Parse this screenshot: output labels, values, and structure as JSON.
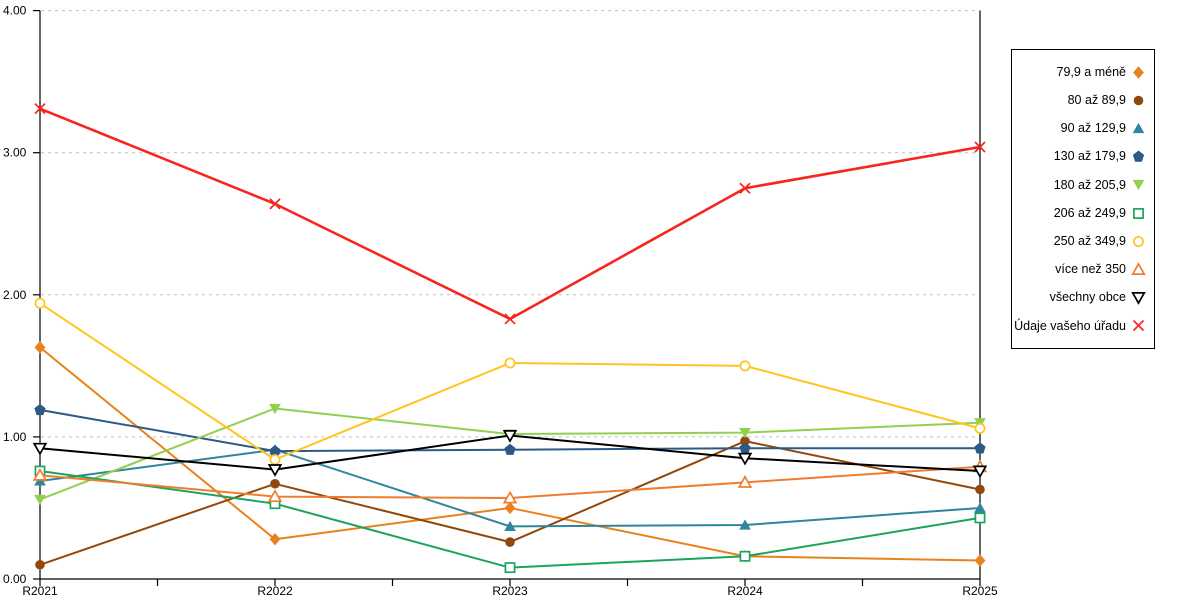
{
  "chart_data": {
    "type": "line",
    "title": "",
    "xlabel": "",
    "ylabel": "",
    "ylim": [
      0,
      4
    ],
    "grid": "horizontal-dashed",
    "grid_color": "#bfbfbf",
    "axis_color": "#000000",
    "legend_position": "right-outside",
    "y_tick_labels": [
      "0.00",
      "1.00",
      "2.00",
      "3.00",
      "4.00"
    ],
    "categories": [
      "R2021",
      "R2022",
      "R2023",
      "R2024",
      "R2025"
    ],
    "series": [
      {
        "name": "79,9 a méně",
        "marker": "diamond-filled",
        "color": "#E8821D",
        "values": [
          1.63,
          0.28,
          0.5,
          0.16,
          0.13
        ]
      },
      {
        "name": "80 až 89,9",
        "marker": "circle-filled",
        "color": "#93480B",
        "values": [
          0.1,
          0.67,
          0.26,
          0.97,
          0.63
        ]
      },
      {
        "name": "90 až 129,9",
        "marker": "triangle-up-filled",
        "color": "#31859C",
        "values": [
          0.69,
          0.91,
          0.37,
          0.38,
          0.5
        ]
      },
      {
        "name": "130 až 179,9",
        "marker": "pentagon-filled",
        "color": "#2C5985",
        "values": [
          1.19,
          0.9,
          0.91,
          0.92,
          0.92
        ]
      },
      {
        "name": "180 až 205,9",
        "marker": "triangle-down-filled",
        "color": "#92D050",
        "values": [
          0.56,
          1.2,
          1.02,
          1.03,
          1.1
        ]
      },
      {
        "name": "206 až 249,9",
        "marker": "square-open",
        "color": "#1CA45C",
        "values": [
          0.76,
          0.53,
          0.08,
          0.16,
          0.43
        ]
      },
      {
        "name": "250 až 349,9",
        "marker": "circle-open",
        "color": "#FFC41E",
        "values": [
          1.94,
          0.84,
          1.52,
          1.5,
          1.06
        ]
      },
      {
        "name": "více než 350",
        "marker": "triangle-up-open",
        "color": "#EE7D2E",
        "values": [
          0.73,
          0.58,
          0.57,
          0.68,
          0.79
        ]
      },
      {
        "name": "všechny obce",
        "marker": "triangle-down-open",
        "color": "#000000",
        "values": [
          0.92,
          0.77,
          1.01,
          0.85,
          0.76
        ]
      },
      {
        "name": "Údaje vašeho úřadu",
        "marker": "x-cross",
        "color": "#F8251D",
        "values": [
          3.31,
          2.64,
          1.83,
          2.75,
          3.04
        ]
      }
    ]
  }
}
